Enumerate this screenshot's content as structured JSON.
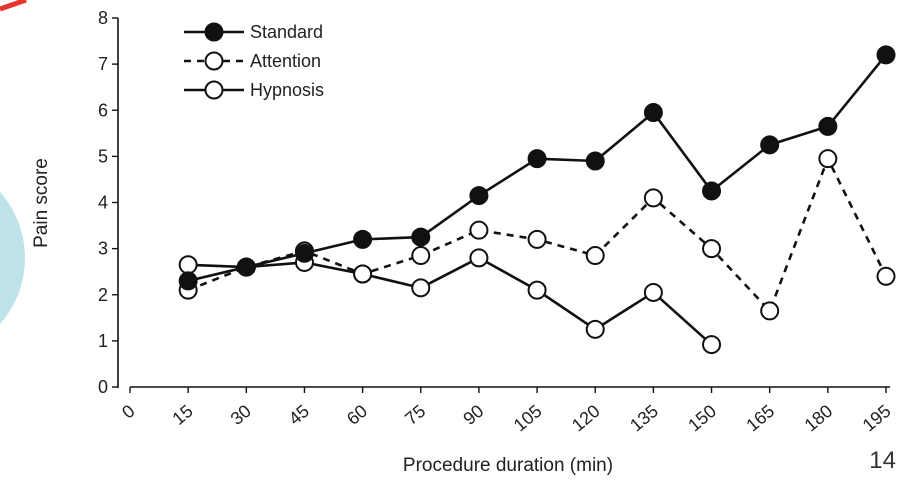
{
  "slide": {
    "page_number": "14",
    "decor_colors": {
      "red_line": "#e8322b",
      "teal_circle": "#bfe3ea"
    }
  },
  "chart_data": {
    "type": "line",
    "title": "",
    "xlabel": "Procedure duration (min)",
    "ylabel": "Pain score",
    "x_ticks": [
      0,
      15,
      30,
      45,
      60,
      75,
      90,
      105,
      120,
      135,
      150,
      165,
      180,
      195
    ],
    "y_ticks": [
      0,
      1,
      2,
      3,
      4,
      5,
      6,
      7,
      8
    ],
    "xlim": [
      0,
      195
    ],
    "ylim": [
      0,
      8
    ],
    "grid": false,
    "legend_position": "top-left",
    "series": [
      {
        "name": "Standard",
        "line_style": "solid",
        "marker": "filled-circle",
        "x": [
          15,
          30,
          45,
          60,
          75,
          90,
          105,
          120,
          135,
          150,
          165,
          180,
          195
        ],
        "y": [
          2.3,
          2.6,
          2.9,
          3.2,
          3.25,
          4.15,
          4.95,
          4.9,
          5.95,
          4.25,
          5.25,
          5.65,
          7.2
        ]
      },
      {
        "name": "Attention",
        "line_style": "dashed",
        "marker": "open-circle",
        "x": [
          15,
          30,
          45,
          60,
          75,
          90,
          105,
          120,
          135,
          150,
          165,
          180,
          195
        ],
        "y": [
          2.1,
          2.6,
          2.95,
          2.45,
          2.85,
          3.4,
          3.2,
          2.85,
          4.1,
          3.0,
          1.65,
          4.95,
          2.4
        ]
      },
      {
        "name": "Hypnosis",
        "line_style": "solid",
        "marker": "open-circle",
        "x": [
          15,
          30,
          45,
          60,
          75,
          90,
          105,
          120,
          135,
          150
        ],
        "y": [
          2.65,
          2.6,
          2.7,
          2.45,
          2.15,
          2.8,
          2.1,
          1.25,
          2.05,
          0.92
        ]
      }
    ]
  }
}
